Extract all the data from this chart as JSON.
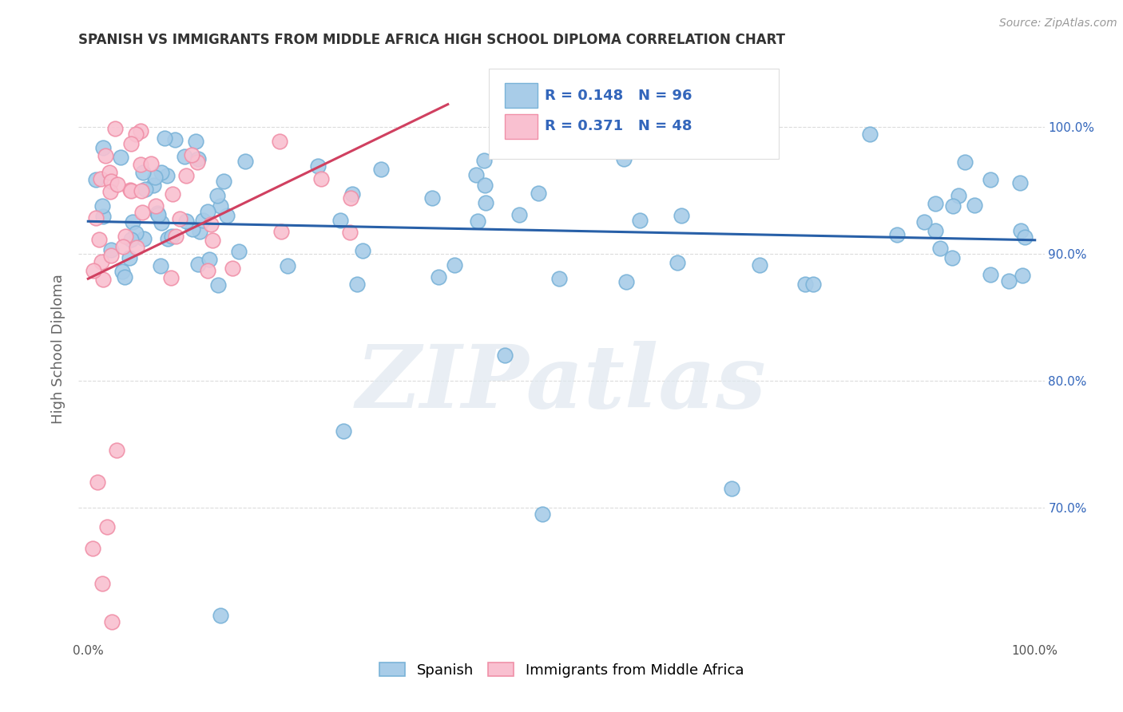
{
  "title": "SPANISH VS IMMIGRANTS FROM MIDDLE AFRICA HIGH SCHOOL DIPLOMA CORRELATION CHART",
  "source": "Source: ZipAtlas.com",
  "ylabel": "High School Diploma",
  "watermark": "ZIPatlas",
  "xlim": [
    -0.01,
    1.01
  ],
  "ylim": [
    0.595,
    1.055
  ],
  "xticks": [
    0.0,
    0.2,
    0.4,
    0.6,
    0.8,
    1.0
  ],
  "xticklabels": [
    "0.0%",
    "",
    "",
    "",
    "",
    "100.0%"
  ],
  "yticks_right": [
    0.7,
    0.8,
    0.9,
    1.0
  ],
  "yticklabels_right": [
    "70.0%",
    "80.0%",
    "90.0%",
    "100.0%"
  ],
  "blue_color": "#a8cce8",
  "blue_edge_color": "#7ab3d8",
  "pink_color": "#f9c0d0",
  "pink_edge_color": "#f090a8",
  "blue_line_color": "#2860a8",
  "pink_line_color": "#d04060",
  "legend_blue_label": "Spanish",
  "legend_pink_label": "Immigrants from Middle Africa",
  "R_blue": 0.148,
  "N_blue": 96,
  "R_pink": 0.371,
  "N_pink": 48,
  "background_color": "#ffffff",
  "grid_color": "#cccccc",
  "title_color": "#333333",
  "axis_label_color": "#666666",
  "right_ytick_color": "#3366bb",
  "legend_text_color": "#3366bb"
}
